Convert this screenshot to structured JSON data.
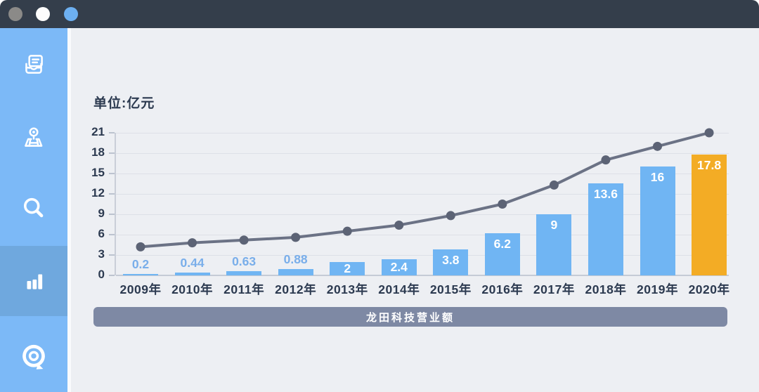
{
  "window": {
    "controls": [
      {
        "name": "gray",
        "color": "#8b8a88"
      },
      {
        "name": "white",
        "color": "#fdfdfd"
      },
      {
        "name": "blue",
        "color": "#6db0f1"
      }
    ]
  },
  "sidebar": {
    "items": [
      {
        "id": "news",
        "icon": "book-icon",
        "active": false
      },
      {
        "id": "map",
        "icon": "map-pin-icon",
        "active": false
      },
      {
        "id": "search",
        "icon": "search-icon",
        "active": false
      },
      {
        "id": "stats",
        "icon": "bar-chart-icon",
        "active": true
      },
      {
        "id": "target",
        "icon": "target-chat-icon",
        "active": false
      }
    ]
  },
  "colors": {
    "titlebar": "#343e4b",
    "sidebar-bg": "#7cb9f7",
    "sidebar-active": "#6fa8de",
    "content-bg": "#edeff3",
    "bar": "#70b5f3",
    "bar-highlight": "#f3ac25",
    "line": "#6b7285",
    "dot": "#5c6375",
    "text": "#2c3a50",
    "label-blue": "#79aeea",
    "banner": "#7e89a4"
  },
  "chart_data": {
    "type": "bar",
    "title": "龙田科技营业额",
    "unit_label": "单位:亿元",
    "categories": [
      "2009年",
      "2010年",
      "2011年",
      "2012年",
      "2013年",
      "2014年",
      "2015年",
      "2016年",
      "2017年",
      "2018年",
      "2019年",
      "2020年"
    ],
    "series": [
      {
        "name": "bars",
        "type": "bar",
        "values": [
          0.2,
          0.44,
          0.63,
          0.88,
          2,
          2.4,
          3.8,
          6.2,
          9,
          13.6,
          16,
          17.8
        ],
        "value_labels": [
          "0.2",
          "0.44",
          "0.63",
          "0.88",
          "2",
          "2.4",
          "3.8",
          "6.2",
          "9",
          "13.6",
          "16",
          "17.8"
        ],
        "highlight_index": 11
      },
      {
        "name": "trend-line",
        "type": "line",
        "values": [
          4.2,
          4.8,
          5.2,
          5.6,
          6.5,
          7.4,
          8.8,
          10.5,
          13.3,
          17,
          19,
          21
        ]
      }
    ],
    "ylim": [
      0,
      21
    ],
    "yticks": [
      0,
      3,
      6,
      9,
      12,
      15,
      18,
      21
    ],
    "grid": true,
    "legend": false
  }
}
